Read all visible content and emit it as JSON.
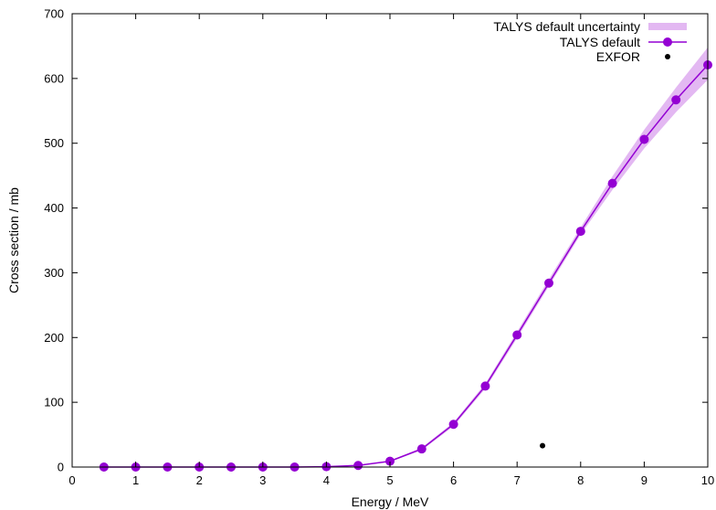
{
  "chart_data": {
    "type": "line",
    "xlabel": "Energy / MeV",
    "ylabel": "Cross section / mb",
    "xlim": [
      0,
      10
    ],
    "ylim": [
      0,
      700
    ],
    "x_ticks": [
      0,
      1,
      2,
      3,
      4,
      5,
      6,
      7,
      8,
      9,
      10
    ],
    "y_ticks": [
      0,
      100,
      200,
      300,
      400,
      500,
      600,
      700
    ],
    "grid": false,
    "legend_position": "top-right",
    "colors": {
      "series": "#9400d3",
      "band": "#e3b8f2",
      "exfor": "#000000"
    },
    "series": [
      {
        "name": "TALYS default",
        "x": [
          0.5,
          1,
          1.5,
          2,
          2.5,
          3,
          3.5,
          4,
          4.5,
          5,
          5.5,
          6,
          6.5,
          7,
          7.5,
          8,
          8.5,
          9,
          9.5,
          10
        ],
        "y": [
          0,
          0,
          0,
          0,
          0,
          0,
          0,
          0.5,
          2.5,
          9,
          28,
          66,
          125,
          204,
          284,
          364,
          438,
          506,
          567,
          621
        ]
      }
    ],
    "uncertainty_band": {
      "name": "TALYS default uncertainty",
      "x": [
        0.5,
        1,
        1.5,
        2,
        2.5,
        3,
        3.5,
        4,
        4.5,
        5,
        5.5,
        6,
        6.5,
        7,
        7.5,
        8,
        8.5,
        9,
        9.5,
        10
      ],
      "lower": [
        0,
        0,
        0,
        0,
        0,
        0,
        0,
        0.3,
        2,
        8,
        26,
        63,
        121,
        199,
        279,
        359,
        428,
        492,
        548,
        598
      ],
      "upper": [
        0,
        0,
        0,
        0,
        0,
        0,
        0,
        0.8,
        3,
        10,
        30,
        69,
        129,
        209,
        290,
        370,
        449,
        521,
        586,
        648
      ]
    },
    "exfor": {
      "name": "EXFOR",
      "x": [
        7.4
      ],
      "y": [
        33
      ]
    }
  }
}
